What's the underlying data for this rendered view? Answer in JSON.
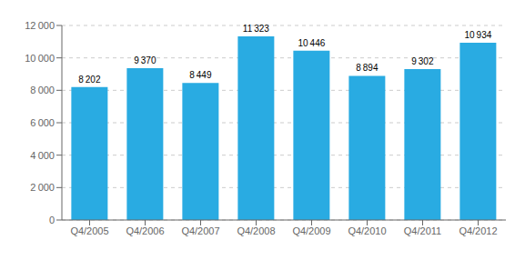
{
  "chart_data": {
    "type": "bar",
    "categories": [
      "Q4/2005",
      "Q4/2006",
      "Q4/2007",
      "Q4/2008",
      "Q4/2009",
      "Q4/2010",
      "Q4/2011",
      "Q4/2012"
    ],
    "values": [
      8202,
      9370,
      8449,
      11323,
      10446,
      8894,
      9302,
      10934
    ],
    "value_labels": [
      "8 202",
      "9 370",
      "8 449",
      "11 323",
      "10 446",
      "8 894",
      "9 302",
      "10 934"
    ],
    "data_labels": true,
    "color": "#29ABE2",
    "ylim": [
      0,
      12000
    ],
    "yticks": [
      0,
      {
        "value": 2000,
        "label": "2 000"
      },
      {
        "value": 4000,
        "label": "4 000"
      },
      {
        "value": 6000,
        "label": "6 000"
      },
      {
        "value": 8000,
        "label": "8 000"
      },
      {
        "value": 10000,
        "label": "10 000"
      },
      {
        "value": 12000,
        "label": "12 000"
      }
    ],
    "grid": true
  }
}
